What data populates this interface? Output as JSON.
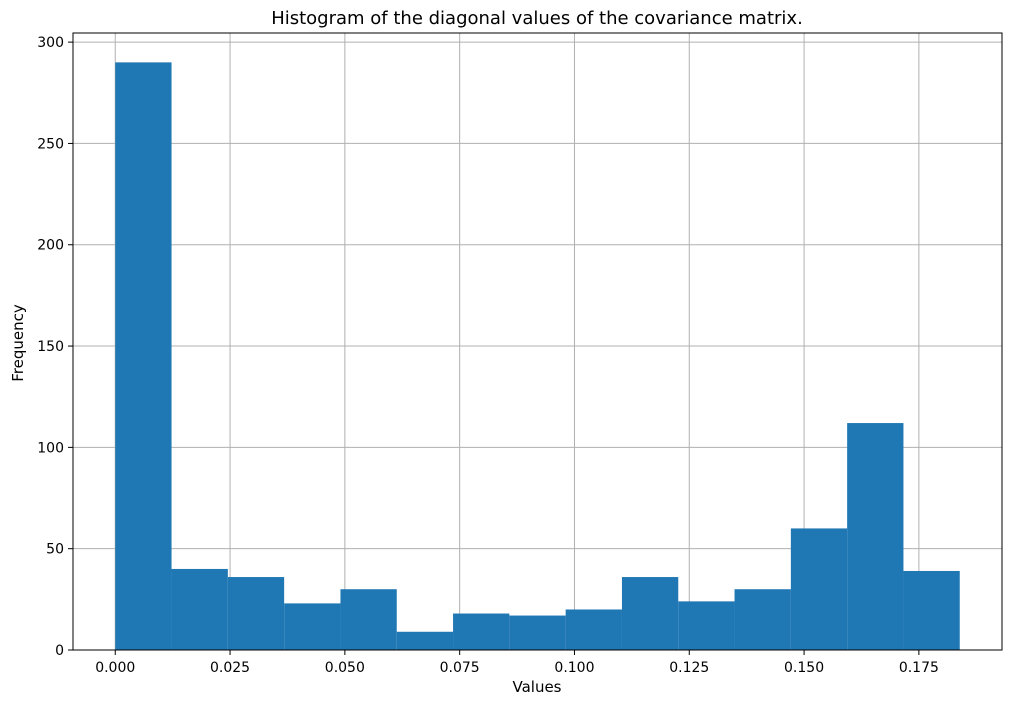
{
  "chart_data": {
    "type": "bar",
    "title": "Histogram of the diagonal values of the covariance matrix.",
    "xlabel": "Values",
    "ylabel": "Frequency",
    "bin_edges": [
      0.0,
      0.01226,
      0.02452,
      0.03678,
      0.04904,
      0.0613,
      0.07356,
      0.08582,
      0.09808,
      0.11034,
      0.1226,
      0.13486,
      0.14712,
      0.15938,
      0.17164,
      0.1839
    ],
    "values": [
      290,
      40,
      36,
      23,
      30,
      9,
      18,
      17,
      20,
      36,
      24,
      30,
      60,
      112,
      39
    ],
    "xlim": [
      -0.0092,
      0.1931
    ],
    "ylim": [
      0,
      304.5
    ],
    "xticks": [
      0.0,
      0.025,
      0.05,
      0.075,
      0.1,
      0.125,
      0.15,
      0.175
    ],
    "xtick_labels": [
      "0.000",
      "0.025",
      "0.050",
      "0.075",
      "0.100",
      "0.125",
      "0.150",
      "0.175"
    ],
    "yticks": [
      0,
      50,
      100,
      150,
      200,
      250,
      300
    ],
    "ytick_labels": [
      "0",
      "50",
      "100",
      "150",
      "200",
      "250",
      "300"
    ],
    "grid": true,
    "bar_color": "#1f77b4",
    "grid_color": "#b0b0b0"
  }
}
